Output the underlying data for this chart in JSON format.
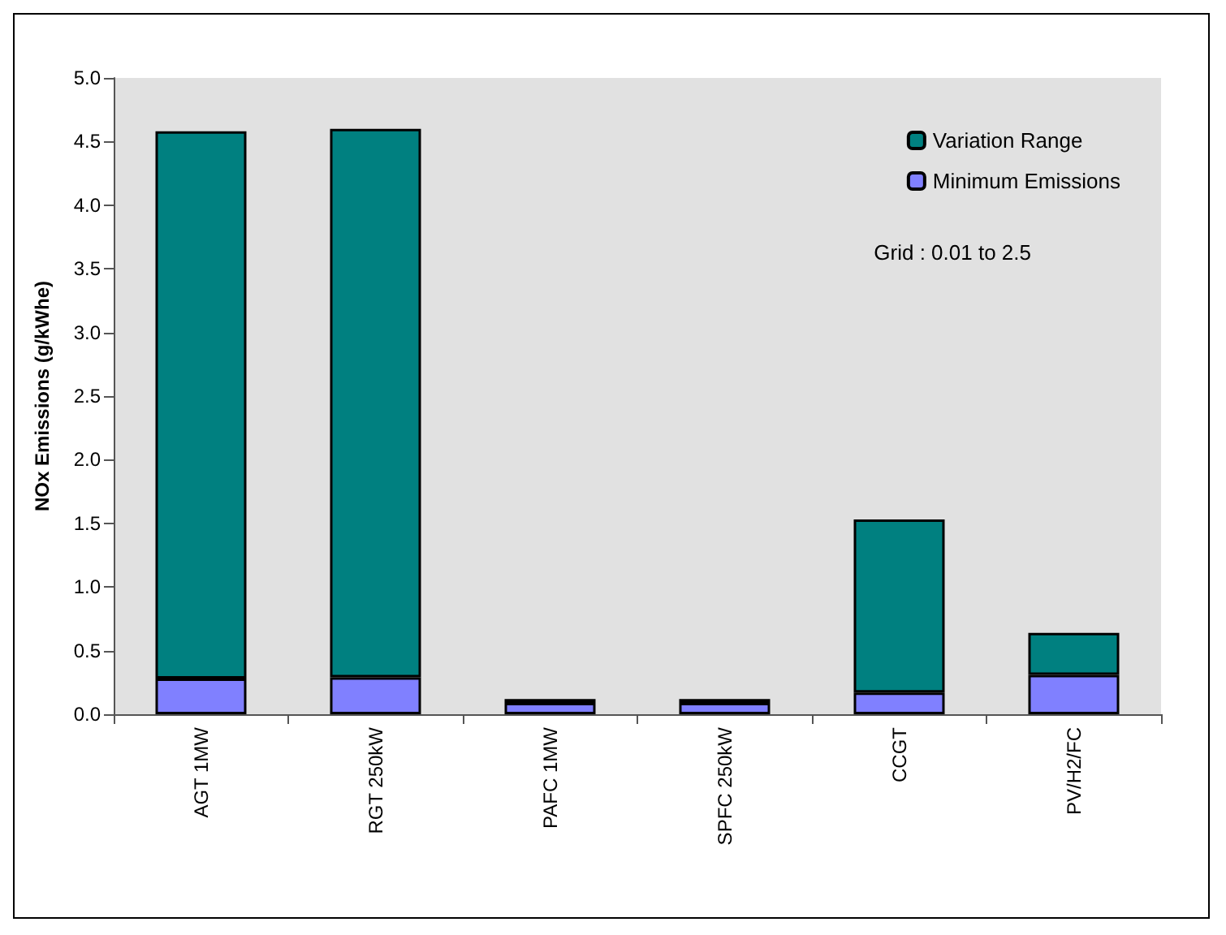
{
  "chart_data": {
    "type": "bar",
    "stacked": true,
    "ylabel": "NOx Emissions (g/kWhe)",
    "categories": [
      "AGT 1MW",
      "RGT 250kW",
      "PAFC 1MW",
      "SPFC 250kW",
      "CCGT",
      "PV/H2/FC"
    ],
    "series": [
      {
        "name": "Minimum Emissions",
        "color": "#8080ff",
        "values": [
          0.28,
          0.29,
          0.09,
          0.09,
          0.17,
          0.31
        ]
      },
      {
        "name": "Variation Range",
        "color": "#008080",
        "values": [
          4.3,
          4.31,
          0.03,
          0.03,
          1.36,
          0.33
        ]
      }
    ],
    "ylim": [
      0,
      5
    ],
    "yticks": [
      {
        "value": 0,
        "label": "0.0"
      },
      {
        "value": 0.5,
        "label": "0.5"
      },
      {
        "value": 1,
        "label": "1.0"
      },
      {
        "value": 1.5,
        "label": "1.5"
      },
      {
        "value": 2,
        "label": "2.0"
      },
      {
        "value": 2.5,
        "label": "2.5"
      },
      {
        "value": 3,
        "label": "3.0"
      },
      {
        "value": 3.5,
        "label": "3.5"
      },
      {
        "value": 4,
        "label": "4.0"
      },
      {
        "value": 4.5,
        "label": "4.5"
      },
      {
        "value": 5,
        "label": "5.0"
      }
    ],
    "annotations": [
      "Grid : 0.01 to 2.5"
    ],
    "legend": "top right",
    "grid": false
  }
}
